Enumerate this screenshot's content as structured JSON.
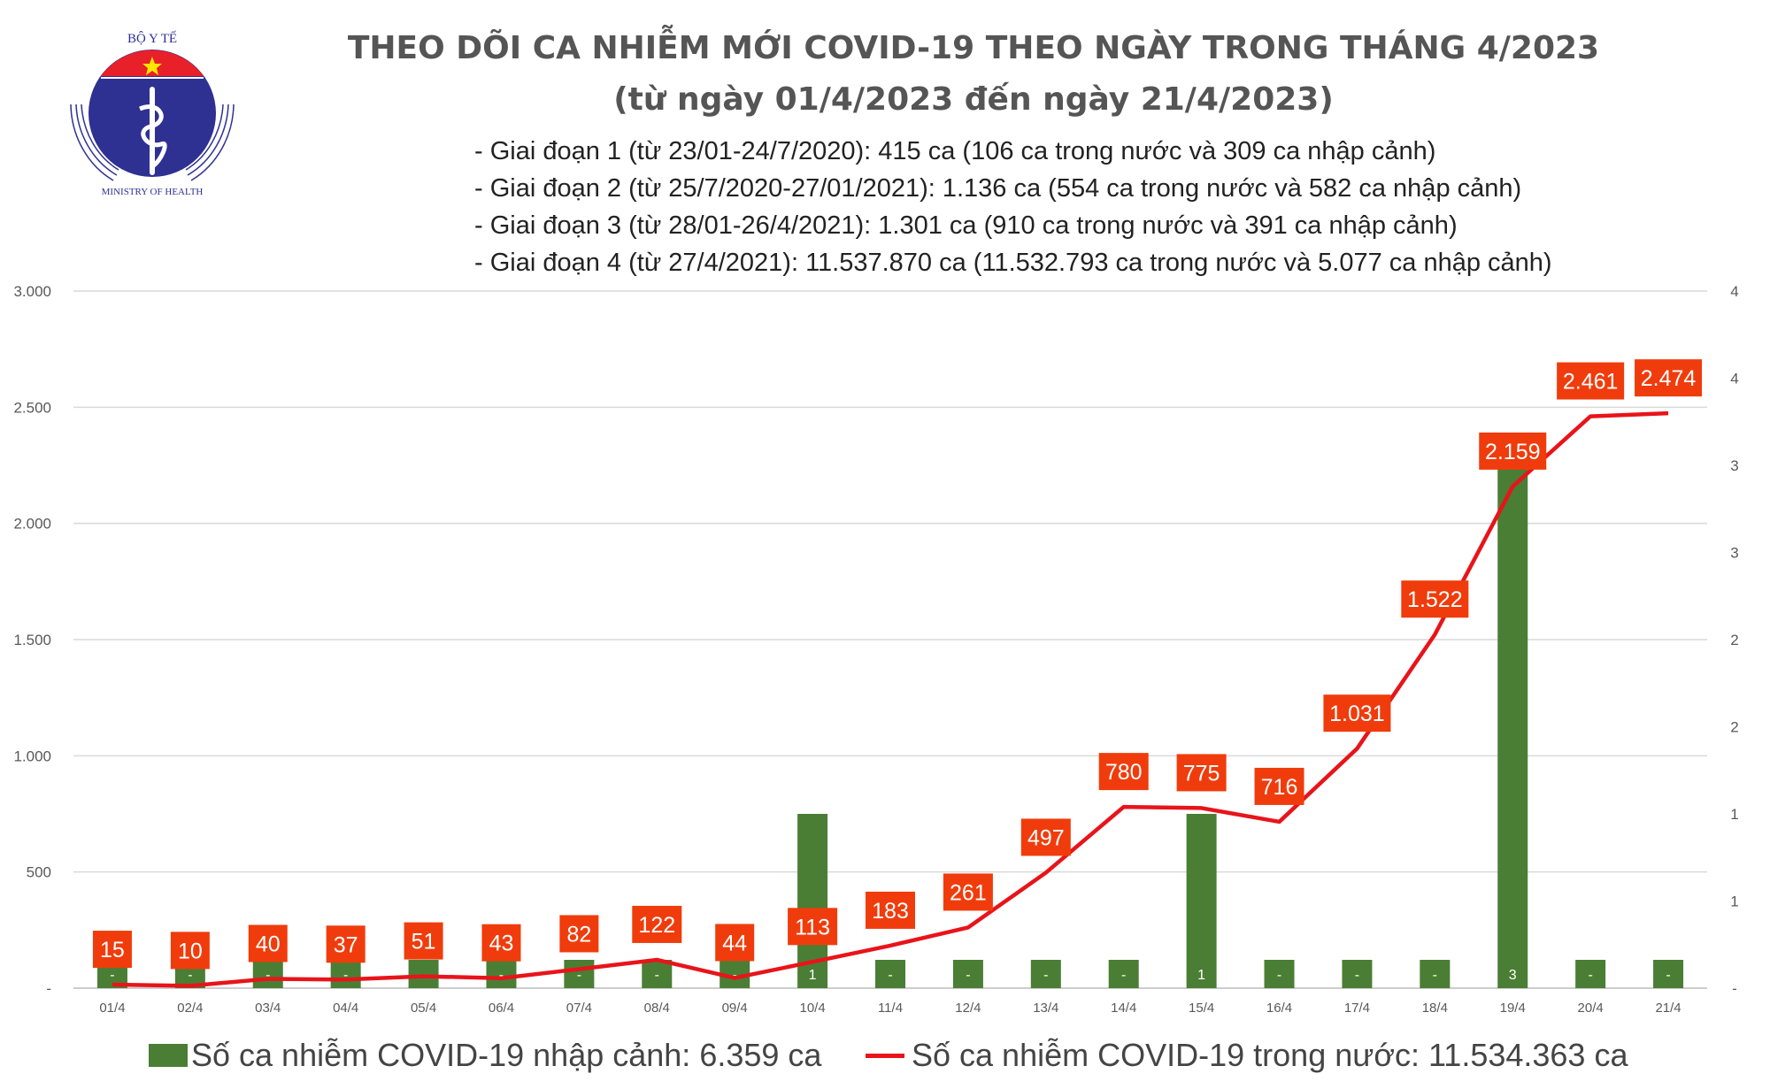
{
  "header": {
    "logo_text": [
      "BỘ Y TẾ",
      "MINISTRY OF HEALTH"
    ],
    "title": "THEO DÕI CA NHIỄM MỚI COVID-19 THEO NGÀY TRONG THÁNG 4/2023",
    "subtitle": "(từ ngày 01/4/2023 đến ngày 21/4/2023)",
    "notes": [
      "- Giai đoạn 1 (từ 23/01-24/7/2020): 415 ca (106 ca trong nước và 309 ca nhập cảnh)",
      "- Giai đoạn 2 (từ 25/7/2020-27/01/2021): 1.136 ca (554 ca trong nước và 582 ca nhập cảnh)",
      "- Giai đoạn 3 (từ 28/01-26/4/2021): 1.301 ca (910 ca trong nước và 391 ca nhập cảnh)",
      "- Giai đoạn 4 (từ 27/4/2021): 11.537.870 ca (11.532.793 ca trong nước và 5.077 ca nhập cảnh)"
    ]
  },
  "chart_data": {
    "type": "bar+line",
    "categories": [
      "01/4",
      "02/4",
      "03/4",
      "04/4",
      "05/4",
      "06/4",
      "07/4",
      "08/4",
      "09/4",
      "10/4",
      "11/4",
      "12/4",
      "13/4",
      "14/4",
      "15/4",
      "16/4",
      "17/4",
      "18/4",
      "19/4",
      "20/4",
      "21/4"
    ],
    "series": [
      {
        "name": "Số ca nhiễm COVID-19 nhập cảnh: 6.359 ca",
        "type": "bar",
        "axis": "right",
        "color": "#4a7e34",
        "values": [
          0,
          0,
          0,
          0,
          0,
          0,
          0,
          0,
          0,
          1,
          0,
          0,
          0,
          0,
          1,
          0,
          0,
          0,
          3,
          0,
          0
        ]
      },
      {
        "name": "Số ca nhiễm COVID-19 trong nước: 11.534.363 ca",
        "type": "line",
        "axis": "left",
        "color": "#e8141a",
        "values": [
          15,
          10,
          40,
          37,
          51,
          43,
          82,
          122,
          44,
          113,
          183,
          261,
          497,
          780,
          775,
          716,
          1031,
          1522,
          2159,
          2461,
          2474
        ]
      }
    ],
    "left_axis": {
      "range": [
        0,
        3000
      ],
      "ticks": [
        "-",
        "500",
        "1.000",
        "1.500",
        "2.000",
        "2.500",
        "3.000"
      ]
    },
    "right_axis": {
      "range": [
        0,
        4
      ],
      "ticks": [
        "-",
        "1",
        "1",
        "2",
        "2",
        "3",
        "3",
        "4",
        "4"
      ]
    },
    "bar_zero_label": "-",
    "label_box_color": "#f03c0c",
    "grid": true,
    "legend_position": "bottom"
  }
}
